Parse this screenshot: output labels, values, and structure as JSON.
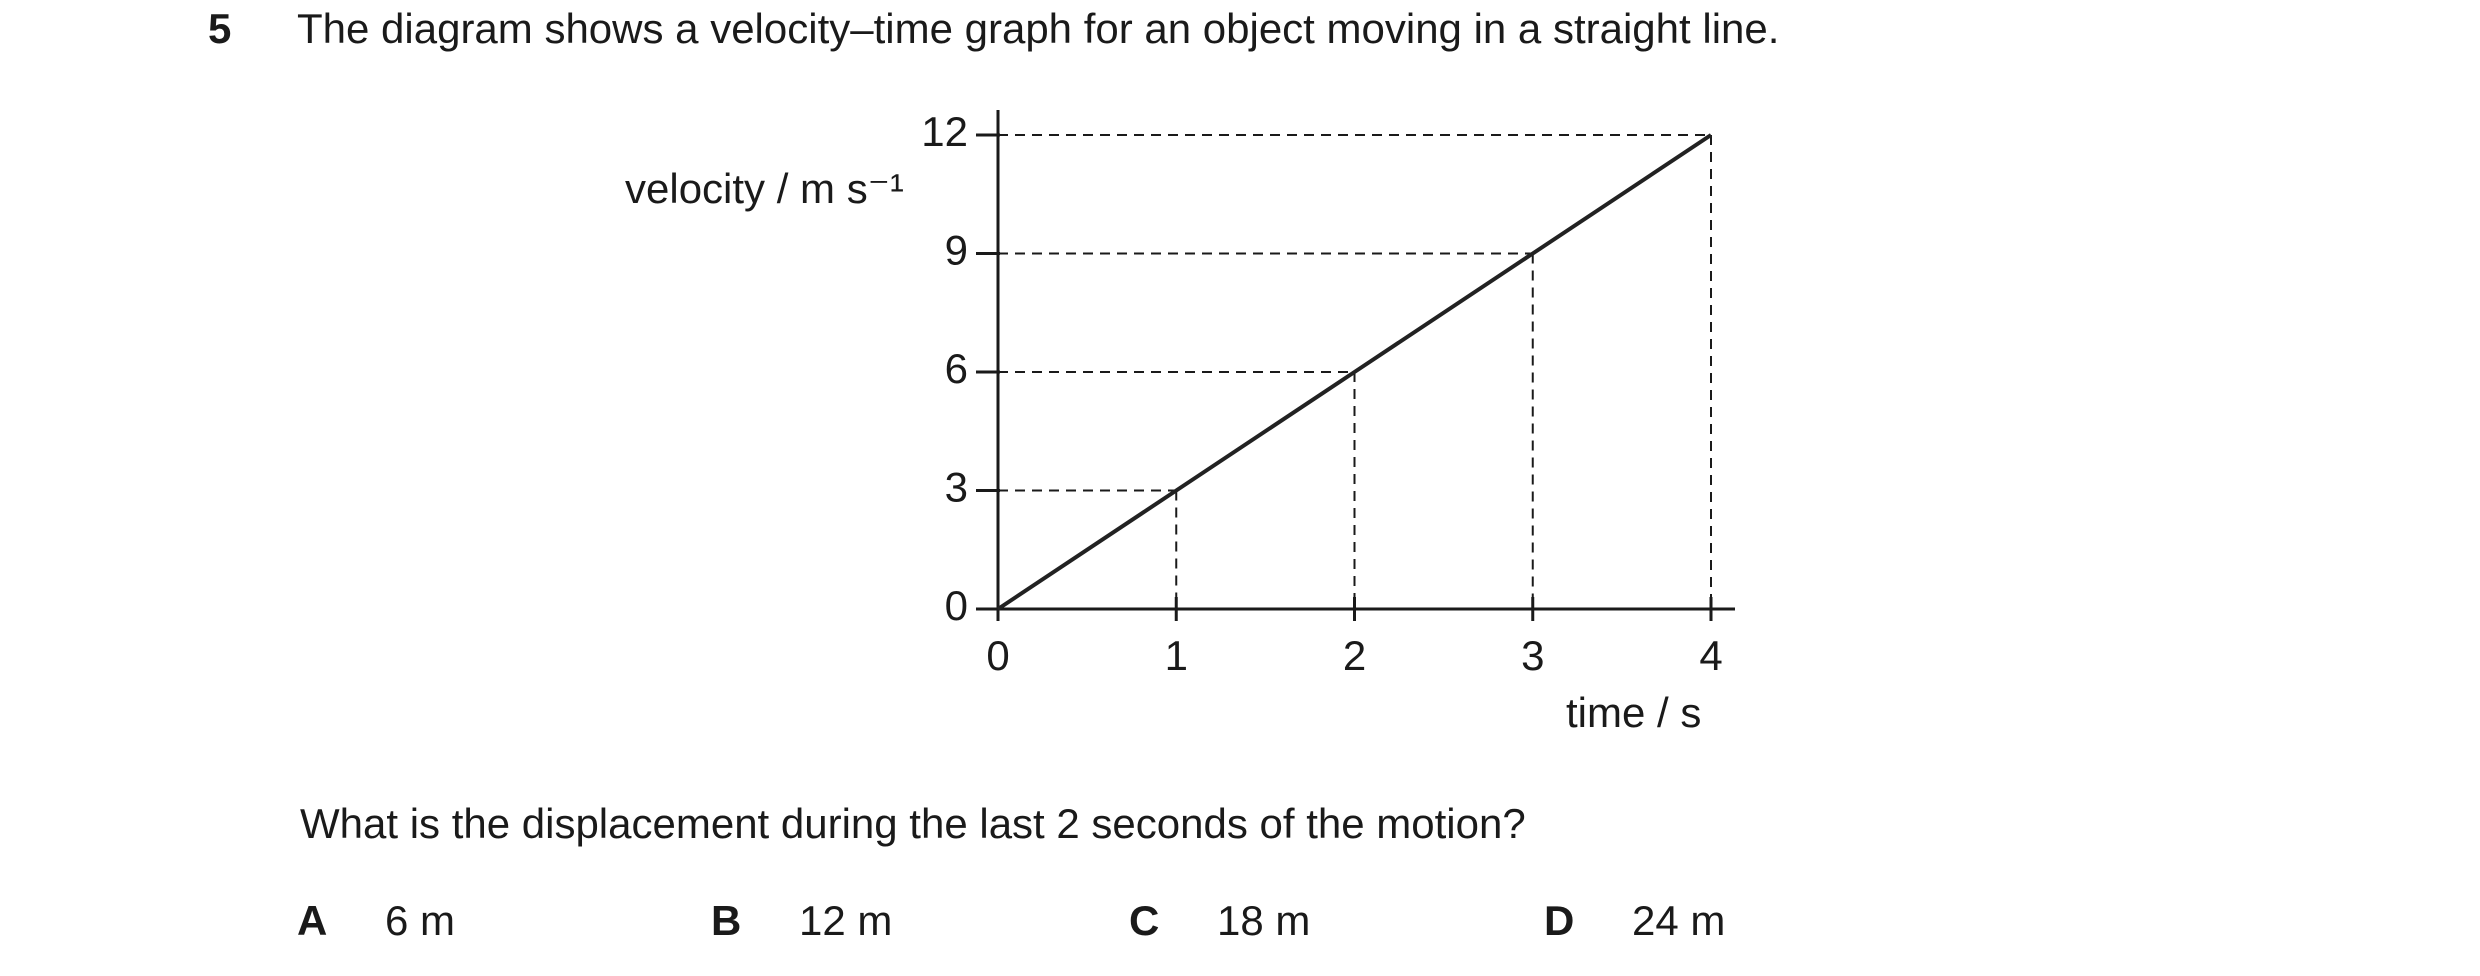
{
  "question": {
    "number": "5",
    "text": "The diagram shows a velocity–time graph for an object moving in a straight line."
  },
  "chart_data": {
    "type": "line",
    "x": [
      0,
      1,
      2,
      3,
      4
    ],
    "values": [
      0,
      3,
      6,
      9,
      12
    ],
    "xlim": [
      0,
      4
    ],
    "ylim": [
      0,
      12
    ],
    "xticks": [
      0,
      1,
      2,
      3,
      4
    ],
    "yticks": [
      0,
      3,
      6,
      9,
      12
    ],
    "y_label": "velocity / m s⁻¹",
    "x_label": "time / s",
    "color": "#222222",
    "guides": true
  },
  "prompt": "What is the displacement during the last 2 seconds of the motion?",
  "options": [
    {
      "letter": "A",
      "text": "6 m"
    },
    {
      "letter": "B",
      "text": "12 m"
    },
    {
      "letter": "C",
      "text": "18 m"
    },
    {
      "letter": "D",
      "text": "24 m"
    }
  ]
}
